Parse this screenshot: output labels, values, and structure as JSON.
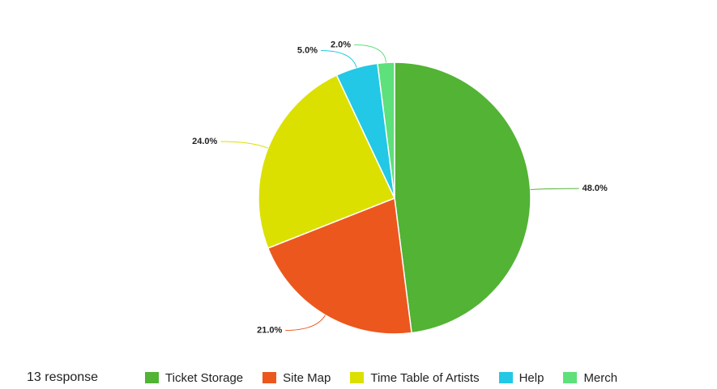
{
  "chart_data": {
    "type": "pie",
    "categories": [
      "Ticket Storage",
      "Site Map",
      "Time Table of Artists",
      "Help",
      "Merch"
    ],
    "values": [
      48,
      21,
      24,
      5,
      2
    ],
    "value_labels": [
      "48.0%",
      "21.0%",
      "24.0%",
      "5.0%",
      "2.0%"
    ],
    "colors": [
      "#52b335",
      "#ec571e",
      "#dce000",
      "#22c8e5",
      "#5ee07a"
    ],
    "note": "13 response"
  }
}
